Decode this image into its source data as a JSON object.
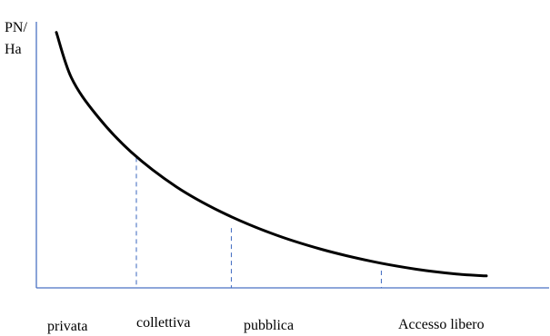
{
  "chart_data": {
    "type": "line",
    "ylabel_lines": [
      "PN/",
      "Ha"
    ],
    "categories": [
      "privata",
      "collettiva",
      "pubblica",
      "Accesso libero"
    ],
    "xlim": [
      0,
      10
    ],
    "ylim": [
      0,
      10
    ],
    "grid": false,
    "curve": {
      "x": [
        0.4,
        0.7,
        1.2,
        1.9,
        2.8,
        3.7,
        4.7,
        5.7,
        6.7,
        7.6,
        8.4,
        9.0
      ],
      "y": [
        9.6,
        7.9,
        6.5,
        5.1,
        3.8,
        2.85,
        2.05,
        1.45,
        1.0,
        0.7,
        0.52,
        0.45
      ]
    },
    "markers": [
      {
        "x": 2.0,
        "y": 4.9
      },
      {
        "x": 3.9,
        "y": 2.25
      },
      {
        "x": 6.9,
        "y": 0.65
      }
    ]
  }
}
